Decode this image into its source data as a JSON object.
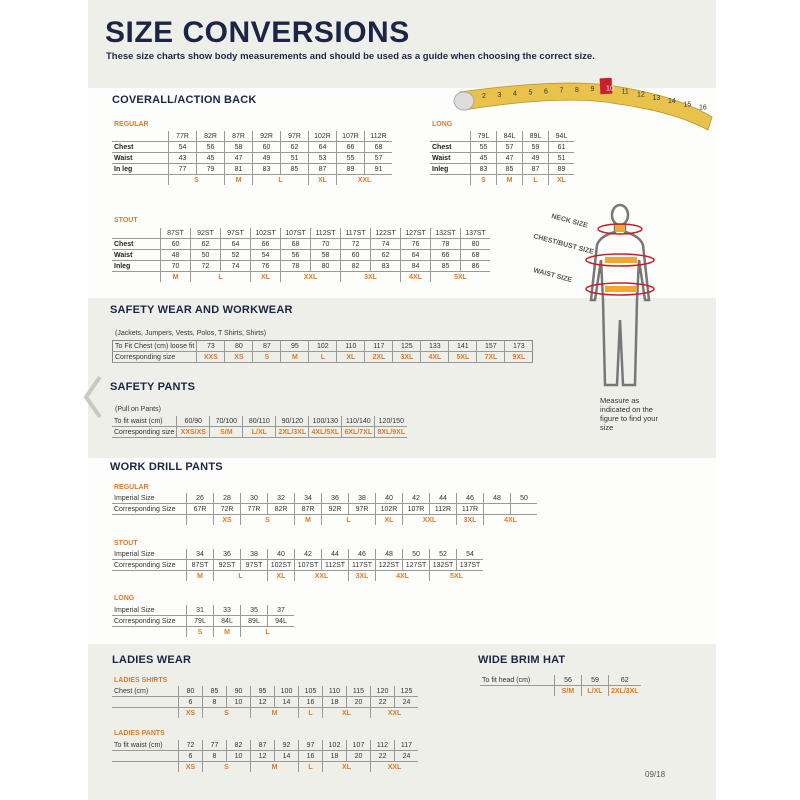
{
  "header": {
    "title": "SIZE CONVERSIONS",
    "subtitle": "These size charts show body measurements and should be used as a guide when choosing the correct size."
  },
  "colors": {
    "navy": "#1c2547",
    "orange": "#e07b2a",
    "tape": "#e8c24a"
  },
  "tape_numbers": [
    "2",
    "3",
    "4",
    "5",
    "6",
    "7",
    "8",
    "9",
    "10",
    "11",
    "12",
    "13",
    "14",
    "15",
    "16"
  ],
  "coverall": {
    "title": "COVERALL/ACTION BACK",
    "regular": {
      "label": "REGULAR",
      "header": [
        "77R",
        "82R",
        "87R",
        "92R",
        "97R",
        "102R",
        "107R",
        "112R"
      ],
      "rows": [
        {
          "label": "Chest",
          "values": [
            "54",
            "56",
            "58",
            "60",
            "62",
            "64",
            "66",
            "68"
          ]
        },
        {
          "label": "Waist",
          "values": [
            "43",
            "45",
            "47",
            "49",
            "51",
            "53",
            "55",
            "57"
          ]
        },
        {
          "label": "In leg",
          "values": [
            "77",
            "79",
            "81",
            "83",
            "85",
            "87",
            "89",
            "91"
          ]
        }
      ],
      "sizes": [
        {
          "label": "S",
          "span": 2
        },
        {
          "label": "M",
          "span": 1
        },
        {
          "label": "L",
          "span": 2
        },
        {
          "label": "XL",
          "span": 1
        },
        {
          "label": "XXL",
          "span": 2
        }
      ]
    },
    "long": {
      "label": "LONG",
      "header": [
        "79L",
        "84L",
        "89L",
        "94L"
      ],
      "rows": [
        {
          "label": "Chest",
          "values": [
            "55",
            "57",
            "59",
            "61"
          ]
        },
        {
          "label": "Waist",
          "values": [
            "45",
            "47",
            "49",
            "51"
          ]
        },
        {
          "label": "Inleg",
          "values": [
            "83",
            "85",
            "87",
            "89"
          ]
        }
      ],
      "sizes": [
        {
          "label": "S",
          "span": 1
        },
        {
          "label": "M",
          "span": 1
        },
        {
          "label": "L",
          "span": 1
        },
        {
          "label": "XL",
          "span": 1
        }
      ]
    },
    "stout": {
      "label": "STOUT",
      "header": [
        "87ST",
        "92ST",
        "97ST",
        "102ST",
        "107ST",
        "112ST",
        "117ST",
        "122ST",
        "127ST",
        "132ST",
        "137ST"
      ],
      "rows": [
        {
          "label": "Chest",
          "values": [
            "60",
            "62",
            "64",
            "66",
            "68",
            "70",
            "72",
            "74",
            "76",
            "78",
            "80"
          ]
        },
        {
          "label": "Waist",
          "values": [
            "48",
            "50",
            "52",
            "54",
            "56",
            "58",
            "60",
            "62",
            "64",
            "66",
            "68"
          ]
        },
        {
          "label": "Inleg",
          "values": [
            "70",
            "72",
            "74",
            "76",
            "78",
            "80",
            "82",
            "83",
            "84",
            "85",
            "86"
          ]
        }
      ],
      "sizes": [
        {
          "label": "M",
          "span": 1
        },
        {
          "label": "L",
          "span": 2
        },
        {
          "label": "XL",
          "span": 1
        },
        {
          "label": "XXL",
          "span": 2
        },
        {
          "label": "3XL",
          "span": 2
        },
        {
          "label": "4XL",
          "span": 1
        },
        {
          "label": "5XL",
          "span": 2
        }
      ]
    }
  },
  "figure": {
    "neck": "NECK SIZE",
    "chest": "CHEST/BUST SIZE",
    "waist": "WAIST SIZE",
    "caption": "Measure as indicated on the figure to find your size"
  },
  "safety_wear": {
    "title": "SAFETY WEAR AND WORKWEAR",
    "note": "(Jackets, Jumpers, Vests, Polos, T Shirts, Shirts)",
    "row_label": "To Fit Chest (cm) loose fit",
    "values": [
      "73",
      "80",
      "87",
      "95",
      "102",
      "110",
      "117",
      "125",
      "133",
      "141",
      "157",
      "173"
    ],
    "size_label": "Corresponding size",
    "sizes": [
      "XXS",
      "XS",
      "S",
      "M",
      "L",
      "XL",
      "2XL",
      "3XL",
      "4XL",
      "5XL",
      "7XL",
      "9XL"
    ]
  },
  "safety_pants": {
    "title": "SAFETY PANTS",
    "note": "(Pull on Pants)",
    "row_label": "To fit waist (cm)",
    "values": [
      "60/90",
      "70/100",
      "80/110",
      "90/120",
      "100/130",
      "110/140",
      "120/150"
    ],
    "size_label": "Corresponding size",
    "sizes": [
      "XXS/XS",
      "S/M",
      "L/XL",
      "2XL/3XL",
      "4XL/5XL",
      "6XL/7XL",
      "8XL/9XL"
    ]
  },
  "work_drill": {
    "title": "WORK DRILL PANTS",
    "regular": {
      "label": "REGULAR",
      "rows": [
        {
          "label": "Imperial Size",
          "values": [
            "26",
            "28",
            "30",
            "32",
            "34",
            "36",
            "38",
            "40",
            "42",
            "44",
            "46",
            "48",
            "50"
          ]
        },
        {
          "label": "Corresponding Size",
          "values": [
            "67R",
            "72R",
            "77R",
            "82R",
            "87R",
            "92R",
            "97R",
            "102R",
            "107R",
            "112R",
            "117R",
            "",
            ""
          ]
        }
      ],
      "sizes": [
        {
          "label": "",
          "span": 1
        },
        {
          "label": "XS",
          "span": 1
        },
        {
          "label": "S",
          "span": 2
        },
        {
          "label": "M",
          "span": 1
        },
        {
          "label": "L",
          "span": 2
        },
        {
          "label": "XL",
          "span": 1
        },
        {
          "label": "XXL",
          "span": 2
        },
        {
          "label": "3XL",
          "span": 1
        },
        {
          "label": "4XL",
          "span": 2
        }
      ]
    },
    "stout": {
      "label": "STOUT",
      "rows": [
        {
          "label": "Imperial Size",
          "values": [
            "34",
            "36",
            "38",
            "40",
            "42",
            "44",
            "46",
            "48",
            "50",
            "52",
            "54"
          ]
        },
        {
          "label": "Corresponding Size",
          "values": [
            "87ST",
            "92ST",
            "97ST",
            "102ST",
            "107ST",
            "112ST",
            "117ST",
            "122ST",
            "127ST",
            "132ST",
            "137ST"
          ]
        }
      ],
      "sizes": [
        {
          "label": "M",
          "span": 1
        },
        {
          "label": "L",
          "span": 2
        },
        {
          "label": "XL",
          "span": 1
        },
        {
          "label": "XXL",
          "span": 2
        },
        {
          "label": "3XL",
          "span": 1
        },
        {
          "label": "4XL",
          "span": 2
        },
        {
          "label": "5XL",
          "span": 2
        }
      ]
    },
    "long": {
      "label": "LONG",
      "rows": [
        {
          "label": "Imperial Size",
          "values": [
            "31",
            "33",
            "35",
            "37"
          ]
        },
        {
          "label": "Corresponding Size",
          "values": [
            "79L",
            "84L",
            "89L",
            "94L"
          ]
        }
      ],
      "sizes": [
        {
          "label": "S",
          "span": 1
        },
        {
          "label": "M",
          "span": 1
        },
        {
          "label": "L",
          "span": 2
        }
      ]
    }
  },
  "ladies": {
    "title": "LADIES WEAR",
    "shirts": {
      "label": "LADIES SHIRTS",
      "rows": [
        {
          "label": "Chest (cm)",
          "values": [
            "80",
            "85",
            "90",
            "95",
            "100",
            "105",
            "110",
            "115",
            "120",
            "125"
          ]
        },
        {
          "label": "",
          "values": [
            "6",
            "8",
            "10",
            "12",
            "14",
            "16",
            "18",
            "20",
            "22",
            "24"
          ]
        }
      ],
      "sizes": [
        {
          "label": "XS",
          "span": 1
        },
        {
          "label": "S",
          "span": 2
        },
        {
          "label": "M",
          "span": 2
        },
        {
          "label": "L",
          "span": 1
        },
        {
          "label": "XL",
          "span": 2
        },
        {
          "label": "XXL",
          "span": 2
        }
      ]
    },
    "pants": {
      "label": "LADIES PANTS",
      "rows": [
        {
          "label": "To fit waist (cm)",
          "values": [
            "72",
            "77",
            "82",
            "87",
            "92",
            "97",
            "102",
            "107",
            "112",
            "117"
          ]
        },
        {
          "label": "",
          "values": [
            "6",
            "8",
            "10",
            "12",
            "14",
            "16",
            "18",
            "20",
            "22",
            "24"
          ]
        }
      ],
      "sizes": [
        {
          "label": "XS",
          "span": 1
        },
        {
          "label": "S",
          "span": 2
        },
        {
          "label": "M",
          "span": 2
        },
        {
          "label": "L",
          "span": 1
        },
        {
          "label": "XL",
          "span": 2
        },
        {
          "label": "XXL",
          "span": 2
        }
      ]
    }
  },
  "hat": {
    "title": "WIDE BRIM HAT",
    "rows": [
      {
        "label": "To fit head (cm)",
        "values": [
          "56",
          "59",
          "62"
        ]
      }
    ],
    "sizes": [
      {
        "label": "S/M",
        "span": 1
      },
      {
        "label": "L/XL",
        "span": 1
      },
      {
        "label": "2XL/3XL",
        "span": 1
      }
    ]
  },
  "footer": {
    "code": "09/18"
  }
}
